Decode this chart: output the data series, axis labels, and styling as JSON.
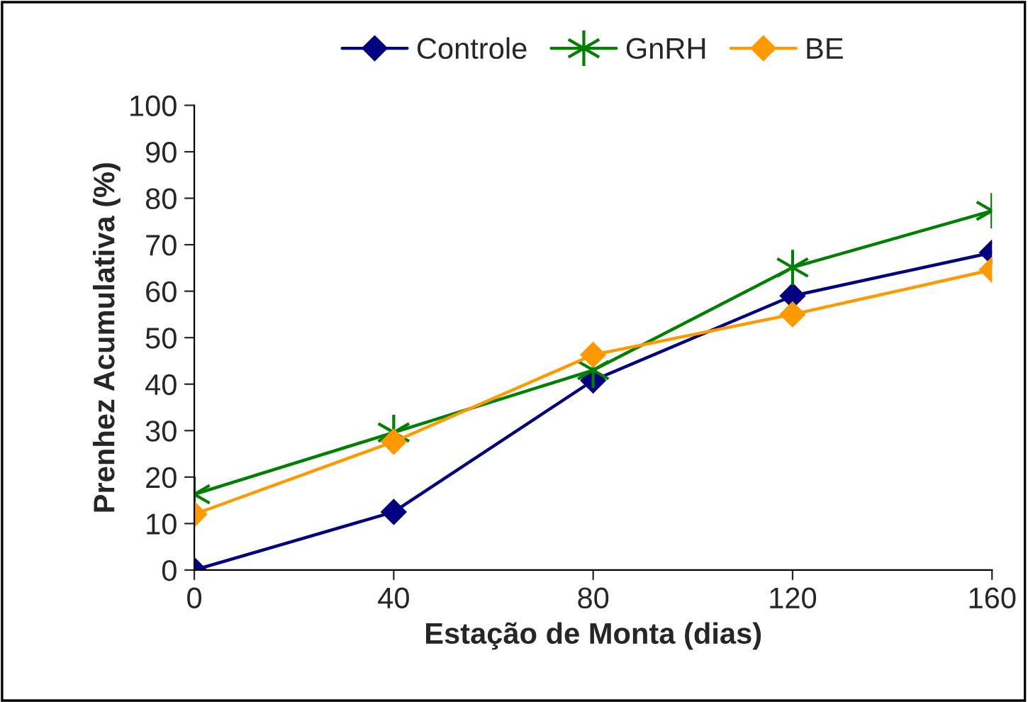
{
  "chart_data": {
    "type": "line",
    "xlabel": "Estação de Monta (dias)",
    "ylabel": "Prenhez Acumulativa (%)",
    "x": [
      0,
      40,
      80,
      120,
      160
    ],
    "series": [
      {
        "name": "Controle",
        "color": "#000080",
        "marker": "diamond",
        "values": [
          0,
          12.5,
          40.8,
          59,
          68.3
        ]
      },
      {
        "name": "GnRH",
        "color": "#008000",
        "marker": "cross",
        "values": [
          16.3,
          29.6,
          43,
          65.1,
          77.3
        ]
      },
      {
        "name": "BE",
        "color": "#ff9900",
        "marker": "diamond",
        "values": [
          12,
          27.6,
          46.3,
          55,
          64.6
        ]
      }
    ],
    "xlim": [
      0,
      160
    ],
    "xticks": [
      0,
      40,
      80,
      120,
      160
    ],
    "ylim": [
      0,
      100
    ],
    "yticks": [
      0,
      10,
      20,
      30,
      40,
      50,
      60,
      70,
      80,
      90,
      100
    ],
    "grid": false,
    "legend": "top",
    "line_style": "solid"
  }
}
